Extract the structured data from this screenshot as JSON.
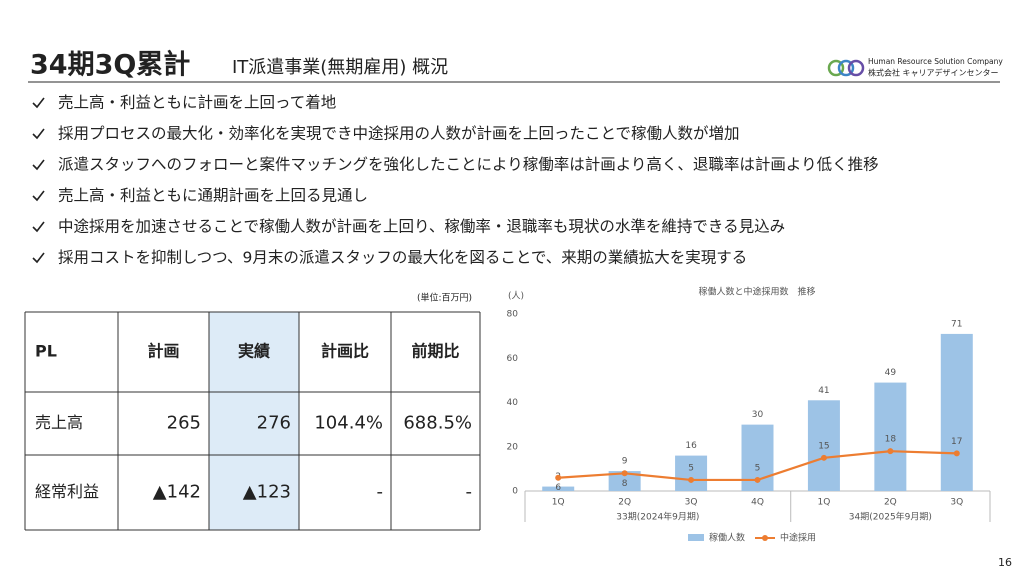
{
  "header": {
    "title": "34期3Q累計",
    "subtitle": "IT派遣事業(無期雇用) 概況",
    "company_en": "Human Resource Solution Company",
    "company_ja": "株式会社 キャリアデザインセンター"
  },
  "bullets": [
    "売上高・利益ともに計画を上回って着地",
    "採用プロセスの最大化・効率化を実現でき中途採用の人数が計画を上回ったことで稼働人数が増加",
    "派遣スタッフへのフォローと案件マッチングを強化したことにより稼働率は計画より高く、退職率は計画より低く推移",
    "売上高・利益ともに通期計画を上回る見通し",
    "中途採用を加速させることで稼働人数が計画を上回り、稼働率・退職率も現状の水準を維持できる見込み",
    "採用コストを抑制しつつ、9月末の派遣スタッフの最大化を図ることで、来期の業績拡大を実現する"
  ],
  "table": {
    "unit": "(単位:百万円)",
    "columns": [
      "PL",
      "計画",
      "実績",
      "計画比",
      "前期比"
    ],
    "rows": [
      [
        "売上高",
        "265",
        "276",
        "104.4%",
        "688.5%"
      ],
      [
        "経常利益",
        "▲142",
        "▲123",
        "-",
        "-"
      ]
    ]
  },
  "chart_data": {
    "type": "bar_line",
    "title": "稼働人数と中途採用数　推移",
    "y_label": "(人)",
    "categories": [
      "1Q",
      "2Q",
      "3Q",
      "4Q",
      "1Q",
      "2Q",
      "3Q"
    ],
    "groups": [
      {
        "label": "33期(2024年9月期)",
        "size": 4
      },
      {
        "label": "34期(2025年9月期)",
        "size": 3
      }
    ],
    "series": [
      {
        "name": "稼働人数",
        "type": "bar",
        "color": "#9dc3e6",
        "values": [
          2,
          9,
          16,
          30,
          41,
          49,
          71
        ]
      },
      {
        "name": "中途採用",
        "type": "line",
        "color": "#ed7d31",
        "values": [
          6,
          8,
          5,
          5,
          15,
          18,
          17
        ]
      }
    ],
    "ylim": [
      0,
      80
    ],
    "yticks": [
      0,
      20,
      40,
      60,
      80
    ]
  },
  "page_number": "16"
}
